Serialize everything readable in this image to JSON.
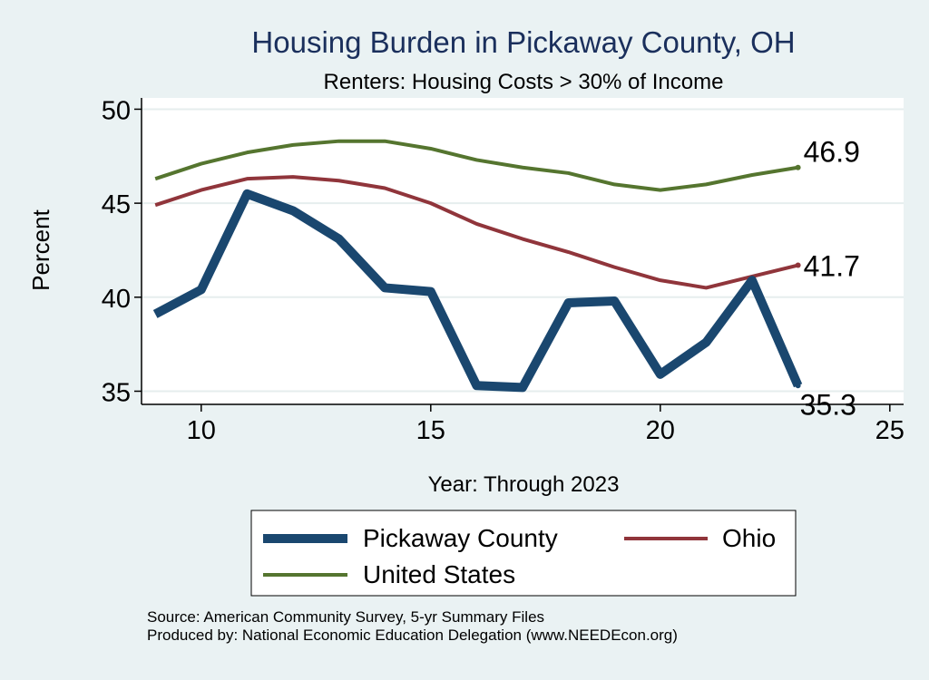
{
  "chart_data": {
    "type": "line",
    "title": "Housing Burden in Pickaway County, OH",
    "subtitle": "Renters: Housing Costs > 30% of Income",
    "xlabel": "Year: Through 2023",
    "ylabel": "Percent",
    "xlim": [
      8.7,
      25.3
    ],
    "ylim": [
      34.3,
      50.6
    ],
    "x_ticks": [
      10,
      15,
      20,
      25
    ],
    "y_ticks": [
      35,
      40,
      45,
      50
    ],
    "grid": true,
    "legend_position": "bottom",
    "series": [
      {
        "name": "Pickaway County",
        "color": "#1a476f",
        "x": [
          9,
          10,
          11,
          12,
          13,
          14,
          15,
          16,
          17,
          18,
          19,
          20,
          21,
          22,
          23
        ],
        "y": [
          39.1,
          40.4,
          45.5,
          44.6,
          43.1,
          40.5,
          40.3,
          35.3,
          35.2,
          39.7,
          39.8,
          35.9,
          37.6,
          40.9,
          35.3
        ],
        "end_label": "35.3"
      },
      {
        "name": "Ohio",
        "color": "#90353b",
        "x": [
          9,
          10,
          11,
          12,
          13,
          14,
          15,
          16,
          17,
          18,
          19,
          20,
          21,
          22,
          23
        ],
        "y": [
          44.9,
          45.7,
          46.3,
          46.4,
          46.2,
          45.8,
          45.0,
          43.9,
          43.1,
          42.4,
          41.6,
          40.9,
          40.5,
          41.1,
          41.7
        ],
        "end_label": "41.7"
      },
      {
        "name": "United States",
        "color": "#55752f",
        "x": [
          9,
          10,
          11,
          12,
          13,
          14,
          15,
          16,
          17,
          18,
          19,
          20,
          21,
          22,
          23
        ],
        "y": [
          46.3,
          47.1,
          47.7,
          48.1,
          48.3,
          48.3,
          47.9,
          47.3,
          46.9,
          46.6,
          46.0,
          45.7,
          46.0,
          46.5,
          46.9
        ],
        "end_label": "46.9"
      }
    ],
    "notes": [
      "Source: American Community Survey, 5-yr Summary Files",
      "Produced by: National Economic Education Delegation (www.NEEDEcon.org)"
    ]
  }
}
